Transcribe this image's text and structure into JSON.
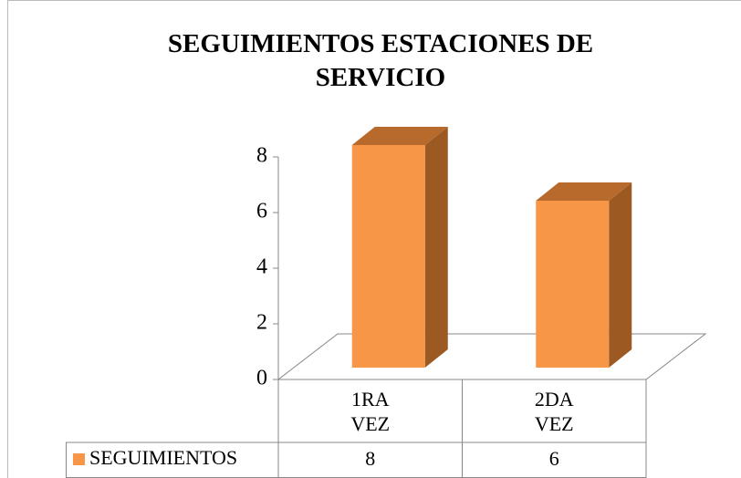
{
  "chart_data": {
    "type": "bar3d",
    "title": "SEGUIMIENTOS ESTACIONES DE SERVICIO",
    "categories": [
      "1RA VEZ",
      "2DA VEZ"
    ],
    "series": [
      {
        "name": "SEGUIMIENTOS",
        "color": "#f79646",
        "values": [
          8,
          6
        ]
      }
    ],
    "ylim": [
      0,
      8
    ],
    "yticks": [
      0,
      2,
      4,
      6,
      8
    ],
    "data_table": true
  }
}
